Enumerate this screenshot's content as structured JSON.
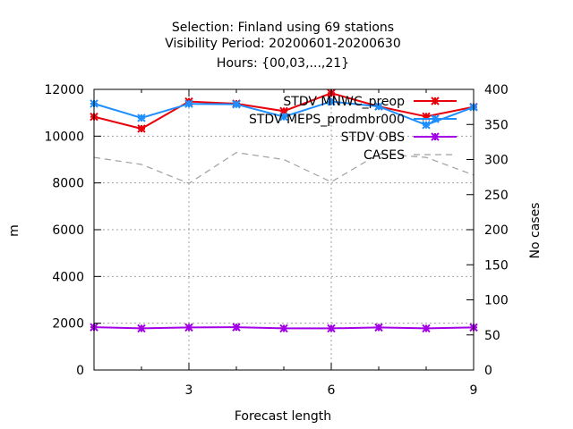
{
  "chart_data": {
    "type": "line",
    "title_lines": [
      "Selection: Finland using    69 stations",
      "Visibility   Period: 20200601-20200630",
      "Hours: {00,03,...,21}"
    ],
    "xlabel": "Forecast length",
    "ylabel": "m",
    "y2label": "No cases",
    "xlim": [
      1,
      9
    ],
    "ylim": [
      0,
      12000
    ],
    "y2lim": [
      0,
      400
    ],
    "xticks": [
      3,
      6,
      9
    ],
    "yticks": [
      0,
      2000,
      4000,
      6000,
      8000,
      10000,
      12000
    ],
    "y2ticks": [
      0,
      50,
      100,
      150,
      200,
      250,
      300,
      350,
      400
    ],
    "grid": true,
    "legend_position": "top-right",
    "x": [
      1,
      2,
      3,
      4,
      5,
      6,
      7,
      8,
      9
    ],
    "series": [
      {
        "name": "STDV MNWC_preop",
        "axis": "y",
        "color": "#e8000b",
        "style": "solid",
        "marker": "star",
        "values": [
          10830,
          10320,
          11480,
          11390,
          11070,
          11840,
          11270,
          10840,
          11250
        ]
      },
      {
        "name": "STDV MEPS_prodmbr000",
        "axis": "y",
        "color": "#1f8fff",
        "style": "solid",
        "marker": "star",
        "values": [
          11390,
          10780,
          11380,
          11360,
          10830,
          11480,
          11270,
          10480,
          11240
        ]
      },
      {
        "name": "STDV OBS",
        "axis": "y",
        "color": "#a400e8",
        "style": "solid",
        "marker": "star",
        "values": [
          1830,
          1780,
          1820,
          1830,
          1780,
          1780,
          1820,
          1780,
          1820
        ]
      },
      {
        "name": "CASES",
        "axis": "y2",
        "color": "#a0a0a0",
        "style": "dashed",
        "marker": "none",
        "values": [
          303,
          293,
          266,
          310,
          300,
          268,
          308,
          303,
          278
        ]
      }
    ]
  }
}
